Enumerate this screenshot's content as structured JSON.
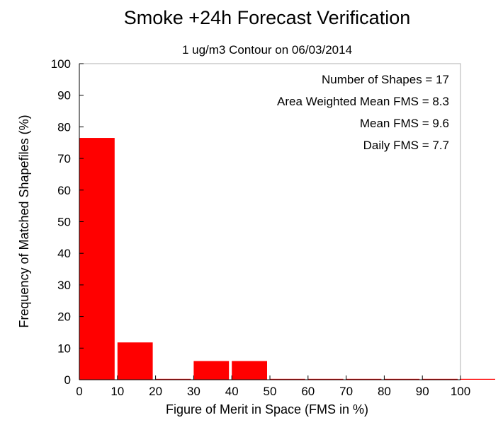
{
  "chart_data": {
    "type": "bar",
    "title": "Smoke +24h Forecast Verification",
    "subtitle": "1 ug/m3 Contour on 06/03/2014",
    "xlabel": "Figure of Merit in Space (FMS in %)",
    "ylabel": "Frequency of Matched Shapefiles (%)",
    "xlim": [
      0,
      100
    ],
    "ylim": [
      0,
      100
    ],
    "xticks": [
      0,
      10,
      20,
      30,
      40,
      50,
      60,
      70,
      80,
      90,
      100
    ],
    "yticks": [
      0,
      10,
      20,
      30,
      40,
      50,
      60,
      70,
      80,
      90,
      100
    ],
    "bins": [
      [
        0,
        9
      ],
      [
        10,
        19
      ],
      [
        20,
        29
      ],
      [
        30,
        39
      ],
      [
        40,
        49
      ],
      [
        50,
        59
      ],
      [
        60,
        69
      ],
      [
        70,
        79
      ],
      [
        80,
        89
      ],
      [
        90,
        99
      ]
    ],
    "values": [
      76.5,
      11.8,
      0,
      5.9,
      5.9,
      0,
      0,
      0,
      0,
      0
    ],
    "bar_color": "#ff0000",
    "annotations": [
      "Number of Shapes = 17",
      "Area Weighted Mean FMS = 8.3",
      "Mean FMS = 9.6",
      "Daily FMS = 7.7"
    ]
  }
}
